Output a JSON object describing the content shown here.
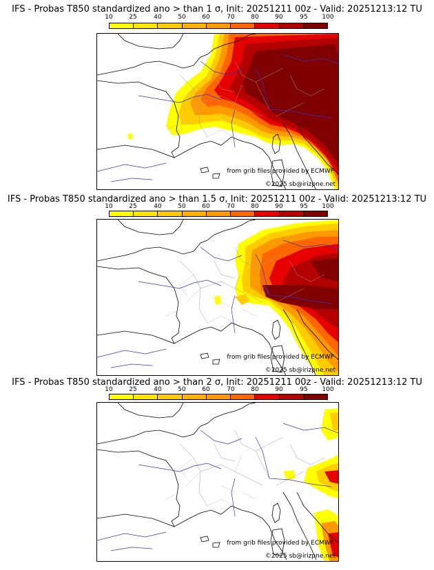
{
  "legend": {
    "ticks": [
      "10",
      "25",
      "40",
      "50",
      "60",
      "70",
      "80",
      "90",
      "95",
      "100"
    ],
    "colors": [
      "#ffff00",
      "#ffe600",
      "#ffcc00",
      "#ffb300",
      "#ff9900",
      "#ff6600",
      "#e60000",
      "#b30000",
      "#800000"
    ]
  },
  "panels": [
    {
      "title": "IFS - Probas T850  standardized ano > than 1 σ, Init: 20251211 00z - Valid: 20251213:12 TU",
      "credit_source": "from grib files provided by ECMWF",
      "credit_copyright": "©2025 sb@irizpne.net"
    },
    {
      "title": "IFS - Probas T850  standardized ano > than 1.5 σ, Init: 20251211 00z - Valid: 20251213:12 TU",
      "credit_source": "from grib files provided by ECMWF",
      "credit_copyright": "©2025 sb@irizpne.net"
    },
    {
      "title": "IFS - Probas T850  standardized ano > than 2 σ, Init: 20251211 00z - Valid: 20251213:12 TU",
      "credit_source": "from grib files provided by ECMWF",
      "credit_copyright": "©2025 sb@irizpne.net"
    }
  ]
}
